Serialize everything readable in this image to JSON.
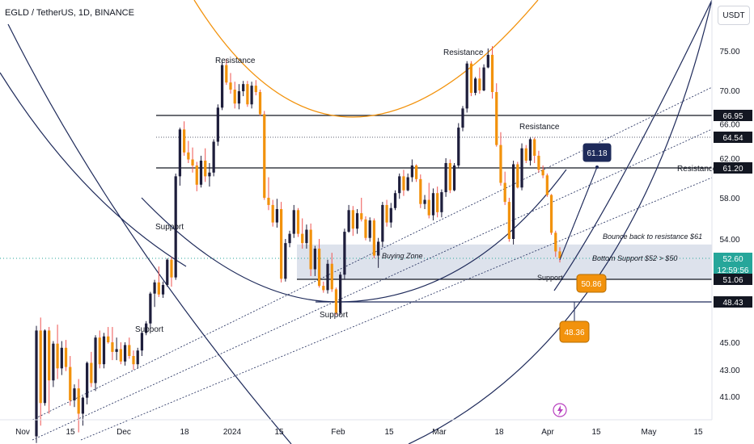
{
  "header": {
    "title": "EGLD / TetherUS, 1D, BINANCE",
    "currency_button": "USDT"
  },
  "colors": {
    "up": "#1e1e3c",
    "down": "#f2920c",
    "down_wick": "#ef5350",
    "navy": "#1e2a5a",
    "orange": "#f2920c",
    "zone": "#cfd6e4"
  },
  "chart_data": {
    "type": "candlestick",
    "symbol": "EGLD / TetherUS",
    "interval": "1D",
    "exchange": "BINANCE",
    "y_ticks": [
      75.0,
      70.0,
      66.0,
      62.0,
      58.0,
      54.0,
      45.0,
      43.0,
      41.0
    ],
    "y_tick_labels": [
      "75.00",
      "70.00",
      "66.00",
      "62.00",
      "58.00",
      "54.00",
      "45.00",
      "43.00",
      "41.00"
    ],
    "x_tick_labels": [
      "Nov",
      "15",
      "Dec",
      "18",
      "2024",
      "15",
      "Feb",
      "15",
      "Mar",
      "18",
      "Apr",
      "15",
      "May",
      "15"
    ],
    "price_tags": [
      {
        "label": "66.95",
        "value": 66.95,
        "style": "dark"
      },
      {
        "label": "64.54",
        "value": 64.54,
        "style": "dark"
      },
      {
        "label": "61.20",
        "value": 61.2,
        "style": "dark"
      },
      {
        "label": "52.60",
        "value": 52.6,
        "style": "teal",
        "countdown": "12:59:56"
      },
      {
        "label": "51.06",
        "value": 51.06,
        "style": "dark"
      },
      {
        "label": "48.43",
        "value": 48.43,
        "style": "dark"
      }
    ],
    "horizontal_levels": [
      66.95,
      64.54,
      61.2,
      51.06,
      48.43
    ],
    "buying_zone": {
      "top": 53.6,
      "bottom": 51.06
    },
    "annotations": [
      "Resistance",
      "Resistance",
      "Resistance",
      "Resistance",
      "Support",
      "Support",
      "Support",
      "Support",
      "Buying Zone",
      "Bounce back to resistance $61",
      "Bottom Support $52 > $50"
    ],
    "callouts": [
      {
        "label": "61.18",
        "value": 61.18,
        "style": "navy"
      },
      {
        "label": "50.86",
        "value": 50.86,
        "style": "orange"
      },
      {
        "label": "48.36",
        "value": 48.36,
        "style": "orange"
      }
    ],
    "candles": [
      [
        38.0,
        46.4,
        37.5,
        46.0
      ],
      [
        46.0,
        47.1,
        38.8,
        40.5
      ],
      [
        40.5,
        46.1,
        40.3,
        46.0
      ],
      [
        46.0,
        46.3,
        39.7,
        42.2
      ],
      [
        42.2,
        45.1,
        41.7,
        44.9
      ],
      [
        44.9,
        46.5,
        42.3,
        43.1
      ],
      [
        43.1,
        45.1,
        42.6,
        44.6
      ],
      [
        44.6,
        45.2,
        42.9,
        43.2
      ],
      [
        43.2,
        44.0,
        40.3,
        40.7
      ],
      [
        40.7,
        41.9,
        40.2,
        41.6
      ],
      [
        41.6,
        42.3,
        38.3,
        39.7
      ],
      [
        39.7,
        41.0,
        38.8,
        40.9
      ],
      [
        40.9,
        43.6,
        40.4,
        43.5
      ],
      [
        43.5,
        44.3,
        41.7,
        42.0
      ],
      [
        42.0,
        45.6,
        41.4,
        45.4
      ],
      [
        45.4,
        46.0,
        43.1,
        43.4
      ],
      [
        43.4,
        45.8,
        43.1,
        45.5
      ],
      [
        45.5,
        46.3,
        44.9,
        45.0
      ],
      [
        45.0,
        46.3,
        43.7,
        44.3
      ],
      [
        44.3,
        45.4,
        43.7,
        44.5
      ],
      [
        44.5,
        45.0,
        43.4,
        43.6
      ],
      [
        43.6,
        45.0,
        43.3,
        44.8
      ],
      [
        44.8,
        45.4,
        43.8,
        44.0
      ],
      [
        44.0,
        44.4,
        43.0,
        43.4
      ],
      [
        43.4,
        44.6,
        43.1,
        44.4
      ],
      [
        44.4,
        45.9,
        44.0,
        45.8
      ],
      [
        45.8,
        46.8,
        45.6,
        46.6
      ],
      [
        46.6,
        49.6,
        46.1,
        49.4
      ],
      [
        49.4,
        51.0,
        48.0,
        50.7
      ],
      [
        50.7,
        52.0,
        49.0,
        49.3
      ],
      [
        49.3,
        50.8,
        48.9,
        50.4
      ],
      [
        50.4,
        52.6,
        50.2,
        52.5
      ],
      [
        52.5,
        52.7,
        50.2,
        51.2
      ],
      [
        51.2,
        60.6,
        51.0,
        60.3
      ],
      [
        60.3,
        65.6,
        59.3,
        65.4
      ],
      [
        65.4,
        66.3,
        62.3,
        62.7
      ],
      [
        62.7,
        64.1,
        61.6,
        61.9
      ],
      [
        61.9,
        63.3,
        60.7,
        61.4
      ],
      [
        61.4,
        61.7,
        58.7,
        59.4
      ],
      [
        59.4,
        62.3,
        59.1,
        61.8
      ],
      [
        61.8,
        63.2,
        59.7,
        60.3
      ],
      [
        60.3,
        61.6,
        59.2,
        60.7
      ],
      [
        60.7,
        64.3,
        60.3,
        64.0
      ],
      [
        64.0,
        68.3,
        63.5,
        67.9
      ],
      [
        67.9,
        73.7,
        67.6,
        73.2
      ],
      [
        73.2,
        74.0,
        70.7,
        71.0
      ],
      [
        71.0,
        72.2,
        69.6,
        70.1
      ],
      [
        70.1,
        71.1,
        67.8,
        68.4
      ],
      [
        68.4,
        70.8,
        67.7,
        69.9
      ],
      [
        69.9,
        71.2,
        69.3,
        70.8
      ],
      [
        70.8,
        71.2,
        68.0,
        68.3
      ],
      [
        68.3,
        71.1,
        67.8,
        70.6
      ],
      [
        70.6,
        71.3,
        69.4,
        69.8
      ],
      [
        69.8,
        70.1,
        66.9,
        67.1
      ],
      [
        67.1,
        67.5,
        57.8,
        58.0
      ],
      [
        58.0,
        60.2,
        56.8,
        57.3
      ],
      [
        57.3,
        57.8,
        55.2,
        55.6
      ],
      [
        55.6,
        57.9,
        55.1,
        56.9
      ],
      [
        56.9,
        57.6,
        50.7,
        51.1
      ],
      [
        51.1,
        54.0,
        50.8,
        53.7
      ],
      [
        53.7,
        54.8,
        53.4,
        54.5
      ],
      [
        54.5,
        57.3,
        54.1,
        56.8
      ],
      [
        56.8,
        57.0,
        54.2,
        54.5
      ],
      [
        54.5,
        56.0,
        53.3,
        53.7
      ],
      [
        53.7,
        55.4,
        53.3,
        54.9
      ],
      [
        54.9,
        55.5,
        51.3,
        51.8
      ],
      [
        51.8,
        53.5,
        51.3,
        53.3
      ],
      [
        53.3,
        54.0,
        50.1,
        50.3
      ],
      [
        50.3,
        50.8,
        49.5,
        49.8
      ],
      [
        49.8,
        52.5,
        49.4,
        52.2
      ],
      [
        52.2,
        53.0,
        49.6,
        49.9
      ],
      [
        49.9,
        50.1,
        47.3,
        47.5
      ],
      [
        47.5,
        51.6,
        47.3,
        51.4
      ],
      [
        51.4,
        55.0,
        51.0,
        54.7
      ],
      [
        54.7,
        57.3,
        54.6,
        56.8
      ],
      [
        56.8,
        57.2,
        54.3,
        55.0
      ],
      [
        55.0,
        56.9,
        54.5,
        56.5
      ],
      [
        56.5,
        58.0,
        55.7,
        55.9
      ],
      [
        55.9,
        56.2,
        53.9,
        54.1
      ],
      [
        54.1,
        56.1,
        53.8,
        55.8
      ],
      [
        55.8,
        56.0,
        52.6,
        52.8
      ],
      [
        52.8,
        54.1,
        51.9,
        53.8
      ],
      [
        53.8,
        57.6,
        53.4,
        57.3
      ],
      [
        57.3,
        57.8,
        55.2,
        55.6
      ],
      [
        55.6,
        57.5,
        55.1,
        57.0
      ],
      [
        57.0,
        58.8,
        56.8,
        58.5
      ],
      [
        58.5,
        60.6,
        57.9,
        60.3
      ],
      [
        60.3,
        61.0,
        58.2,
        58.8
      ],
      [
        58.8,
        60.6,
        58.7,
        60.2
      ],
      [
        60.2,
        61.9,
        59.7,
        61.4
      ],
      [
        61.4,
        61.5,
        59.7,
        60.0
      ],
      [
        60.0,
        60.5,
        57.0,
        57.4
      ],
      [
        57.4,
        58.3,
        56.9,
        57.8
      ],
      [
        57.8,
        59.6,
        56.0,
        56.3
      ],
      [
        56.3,
        59.0,
        55.8,
        58.5
      ],
      [
        58.5,
        59.2,
        56.1,
        56.6
      ],
      [
        56.6,
        58.9,
        56.1,
        58.6
      ],
      [
        58.6,
        62.0,
        58.1,
        61.6
      ],
      [
        61.6,
        61.9,
        58.5,
        58.8
      ],
      [
        58.8,
        61.6,
        58.7,
        61.4
      ],
      [
        61.4,
        66.1,
        61.2,
        65.6
      ],
      [
        65.6,
        68.1,
        65.2,
        67.8
      ],
      [
        67.8,
        73.7,
        67.3,
        73.4
      ],
      [
        73.4,
        73.7,
        69.3,
        69.7
      ],
      [
        69.7,
        71.7,
        69.4,
        71.5
      ],
      [
        71.5,
        72.9,
        69.6,
        70.0
      ],
      [
        70.0,
        73.3,
        69.9,
        72.9
      ],
      [
        72.9,
        75.3,
        72.8,
        74.5
      ],
      [
        74.5,
        75.6,
        69.0,
        69.8
      ],
      [
        69.8,
        70.9,
        63.4,
        63.6
      ],
      [
        63.6,
        65.1,
        59.3,
        59.6
      ],
      [
        59.6,
        60.8,
        57.3,
        57.6
      ],
      [
        57.6,
        58.0,
        53.8,
        54.0
      ],
      [
        54.0,
        61.8,
        53.6,
        61.5
      ],
      [
        61.5,
        61.7,
        59.0,
        59.1
      ],
      [
        59.1,
        63.8,
        58.8,
        63.2
      ],
      [
        63.2,
        63.6,
        61.6,
        61.8
      ],
      [
        61.8,
        64.5,
        61.4,
        64.3
      ],
      [
        64.3,
        64.5,
        61.6,
        62.3
      ],
      [
        62.3,
        62.9,
        60.7,
        61.0
      ],
      [
        61.0,
        61.4,
        60.1,
        60.4
      ],
      [
        60.4,
        60.6,
        58.1,
        58.3
      ],
      [
        58.3,
        58.4,
        54.4,
        54.6
      ],
      [
        54.6,
        54.8,
        52.7,
        53.1
      ],
      [
        53.1,
        53.4,
        52.3,
        52.6
      ]
    ]
  }
}
